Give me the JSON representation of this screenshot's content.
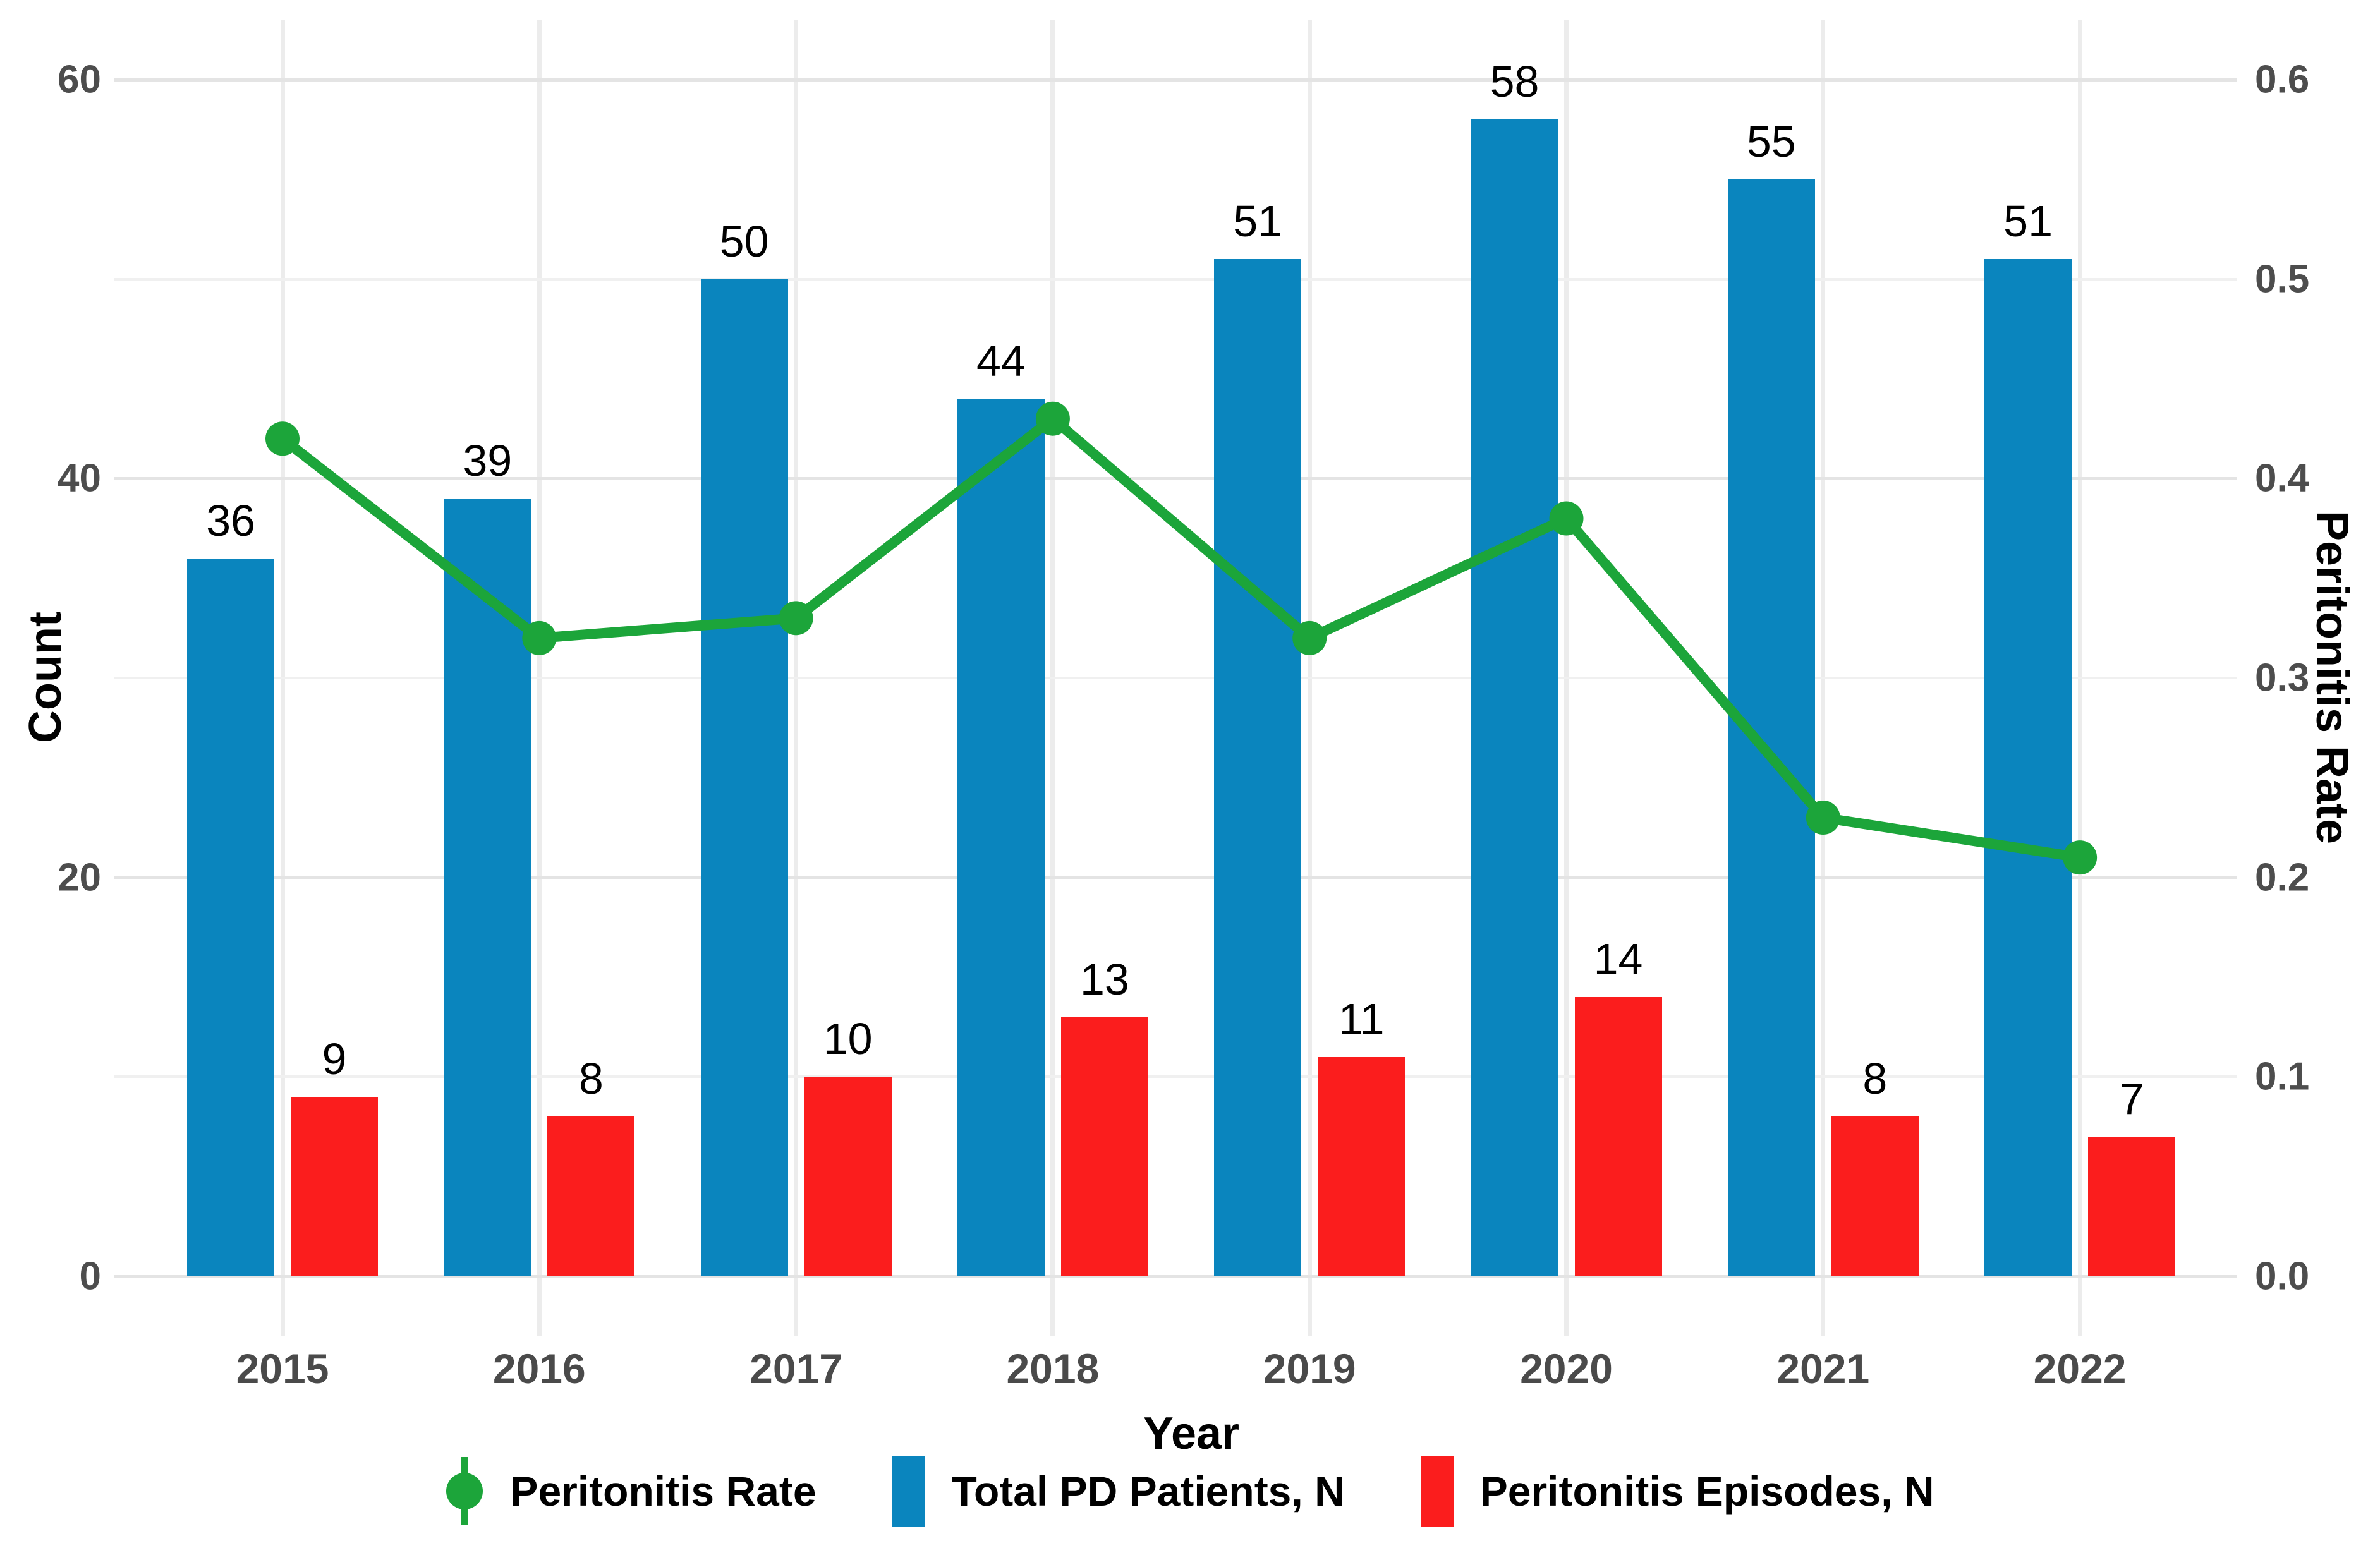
{
  "chart_data": {
    "type": "combo",
    "title": "",
    "categories": [
      "2015",
      "2016",
      "2017",
      "2018",
      "2019",
      "2020",
      "2021",
      "2022"
    ],
    "series": [
      {
        "name": "Total PD Patients, N",
        "type": "bar",
        "axis": "left",
        "color": "#0a85be",
        "values": [
          36,
          39,
          50,
          44,
          51,
          58,
          55,
          51
        ]
      },
      {
        "name": "Peritonitis Episodes, N",
        "type": "bar",
        "axis": "left",
        "color": "#fb1d1d",
        "values": [
          9,
          8,
          10,
          13,
          11,
          14,
          8,
          7
        ]
      },
      {
        "name": "Peritonitis Rate",
        "type": "line",
        "axis": "right",
        "color": "#1ca53a",
        "values": [
          0.42,
          0.32,
          0.33,
          0.43,
          0.32,
          0.38,
          0.23,
          0.21
        ]
      }
    ],
    "axes": {
      "x": {
        "title": "Year",
        "tick_labels": [
          "2015",
          "2016",
          "2017",
          "2018",
          "2019",
          "2020",
          "2021",
          "2022"
        ]
      },
      "left": {
        "title": "Count",
        "tick_values": [
          0,
          20,
          40,
          60
        ],
        "tick_labels": [
          "0",
          "20",
          "40",
          "60"
        ],
        "minor_tick_values": [
          10,
          30,
          50
        ],
        "range": [
          0,
          63
        ]
      },
      "right": {
        "title": "Peritonitis Rate",
        "tick_values": [
          0,
          10,
          20,
          30,
          40,
          50,
          60
        ],
        "tick_labels": [
          "0.0",
          "0.1",
          "0.2",
          "0.3",
          "0.4",
          "0.5",
          "0.6"
        ],
        "range": [
          0.0,
          0.63
        ]
      }
    },
    "grid": "on",
    "legend_position": "bottom"
  },
  "legend": {
    "items": [
      {
        "label": "Peritonitis Rate",
        "marker": "point",
        "color": "#1ca53a"
      },
      {
        "label": "Total PD Patients, N",
        "marker": "rect",
        "color": "#0a85be"
      },
      {
        "label": "Peritonitis Episodes, N",
        "marker": "rect",
        "color": "#fb1d1d"
      }
    ]
  },
  "colors": {
    "bar_blue": "#0a85be",
    "bar_red": "#fb1d1d",
    "line_green": "#1ca53a",
    "tick_text": "#4d4d4d",
    "grid_major": "#e4e4e4",
    "grid_minor": "#f0f0f0",
    "background": "#ffffff"
  }
}
